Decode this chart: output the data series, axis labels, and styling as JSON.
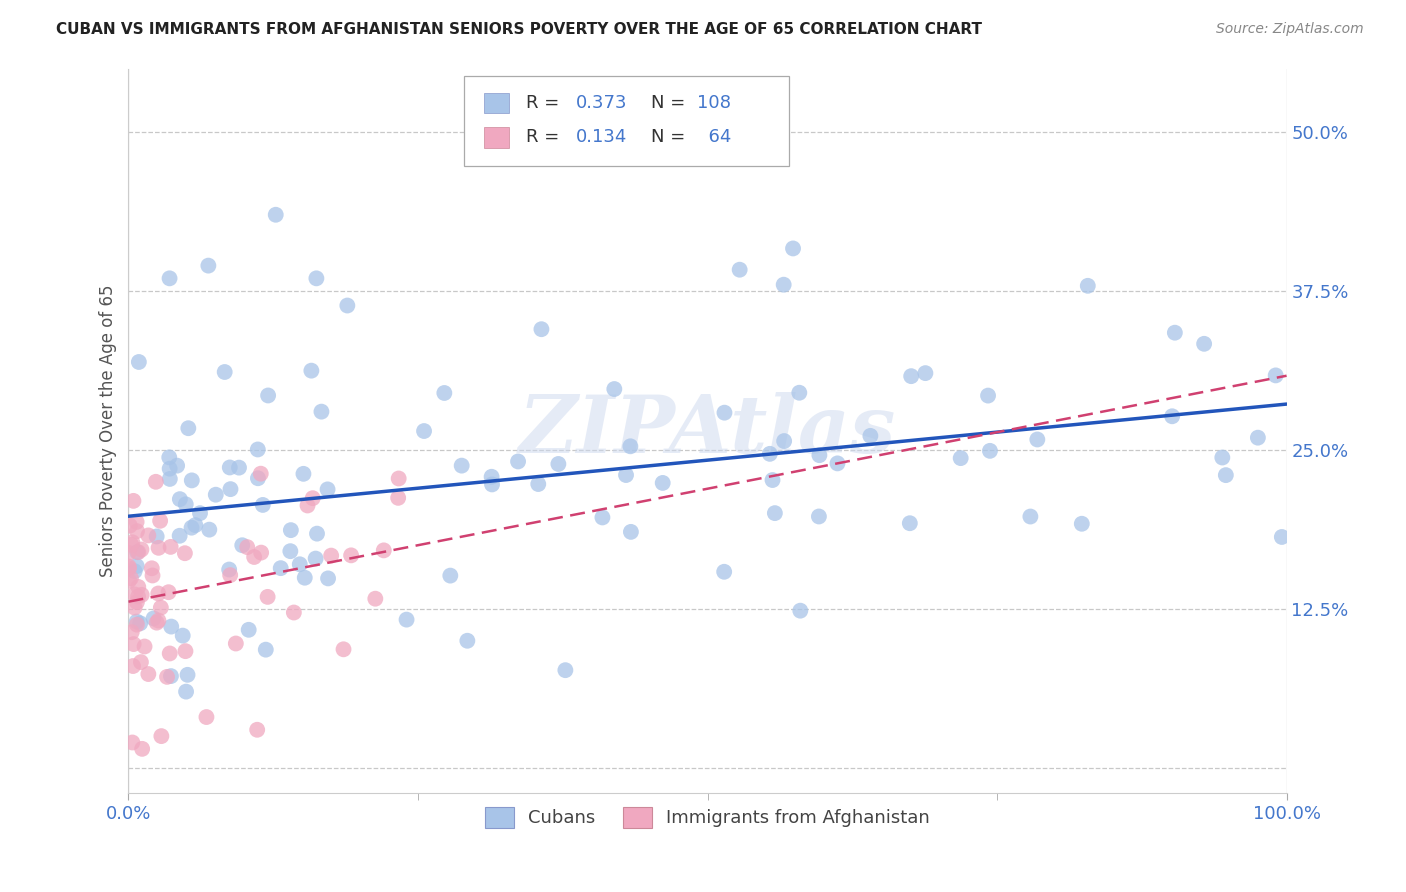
{
  "title": "CUBAN VS IMMIGRANTS FROM AFGHANISTAN SENIORS POVERTY OVER THE AGE OF 65 CORRELATION CHART",
  "source": "Source: ZipAtlas.com",
  "ylabel": "Seniors Poverty Over the Age of 65",
  "xlabel": "",
  "xlim": [
    0,
    1.0
  ],
  "ylim": [
    -0.02,
    0.55
  ],
  "yticks": [
    0.0,
    0.125,
    0.25,
    0.375,
    0.5
  ],
  "ytick_labels": [
    "",
    "12.5%",
    "25.0%",
    "37.5%",
    "50.0%"
  ],
  "xticks": [
    0.0,
    1.0
  ],
  "xtick_labels": [
    "0.0%",
    "100.0%"
  ],
  "cubans_R": 0.373,
  "cubans_N": 108,
  "afghan_R": 0.134,
  "afghan_N": 64,
  "cubans_color": "#a8c4e8",
  "afghan_color": "#f0a8c0",
  "cubans_line_color": "#2255bb",
  "afghan_line_color": "#d04070",
  "legend_label_cubans": "Cubans",
  "legend_label_afghan": "Immigrants from Afghanistan",
  "watermark": "ZIPAtlas",
  "background_color": "#ffffff",
  "grid_color": "#c8c8c8",
  "tick_color": "#4477cc",
  "title_color": "#222222",
  "source_color": "#888888"
}
